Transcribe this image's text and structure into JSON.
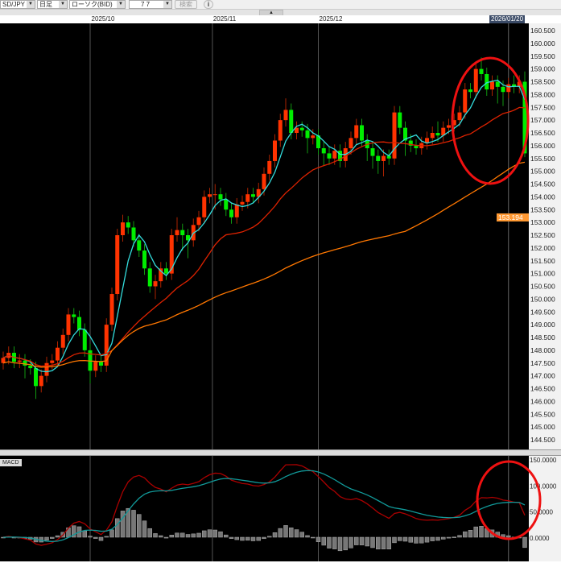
{
  "toolbar": {
    "symbol": "SD/JPY",
    "timeframe": "日足",
    "chart_type": "ローソク(BID)",
    "count": "7 7",
    "search_label": "検索",
    "info_icon": "info-icon"
  },
  "panel_label": "MACD",
  "cursor_date": "2026/01/20",
  "current_price_label": "153.194",
  "colors": {
    "up": "#ff3300",
    "down": "#00ee00",
    "ma_short": "#33dddd",
    "ma_mid": "#dd2200",
    "ma_long": "#ff7700",
    "macd": "#aa0000",
    "signal": "#119999",
    "histogram": "#777777",
    "annotation": "#ee1111",
    "price_tag": "#ff9933"
  },
  "chart_data": [
    {
      "type": "candlestick",
      "title": "",
      "x_ticks": [
        {
          "label": "2025/10",
          "index": 16
        },
        {
          "label": "2025/11",
          "index": 38.5
        },
        {
          "label": "2025/12",
          "index": 58
        }
      ],
      "cursor_index": 93,
      "y_ticks": [
        "160.500",
        "160.000",
        "159.500",
        "159.000",
        "158.500",
        "158.000",
        "157.500",
        "157.000",
        "156.500",
        "156.000",
        "155.500",
        "155.000",
        "154.500",
        "154.000",
        "153.500",
        "153.000",
        "152.500",
        "152.000",
        "151.500",
        "151.000",
        "150.500",
        "150.000",
        "149.500",
        "149.000",
        "148.500",
        "148.000",
        "147.500",
        "147.000",
        "146.500",
        "146.000",
        "145.500",
        "145.000",
        "144.500"
      ],
      "ylim": [
        144.0,
        161.4
      ],
      "overlays": [
        "ma_short",
        "ma_mid",
        "ma_long"
      ],
      "ohlc": [
        [
          147.5,
          147.95,
          147.25,
          147.7
        ],
        [
          147.7,
          148.15,
          147.45,
          147.9
        ],
        [
          147.9,
          148.15,
          147.3,
          147.55
        ],
        [
          147.55,
          147.85,
          147.3,
          147.6
        ],
        [
          147.6,
          147.85,
          146.9,
          147.4
        ],
        [
          147.4,
          147.65,
          147.05,
          147.3
        ],
        [
          147.3,
          147.55,
          146.1,
          146.6
        ],
        [
          146.6,
          147.25,
          146.35,
          147.0
        ],
        [
          147.0,
          147.75,
          146.75,
          147.5
        ],
        [
          147.5,
          147.85,
          147.25,
          147.6
        ],
        [
          147.6,
          148.35,
          147.35,
          148.1
        ],
        [
          148.1,
          148.85,
          147.85,
          148.6
        ],
        [
          148.6,
          149.65,
          148.35,
          149.4
        ],
        [
          149.4,
          149.65,
          149.05,
          149.3
        ],
        [
          149.3,
          149.55,
          148.55,
          148.8
        ],
        [
          148.8,
          149.05,
          147.75,
          148.0
        ],
        [
          148.0,
          148.25,
          146.7,
          147.2
        ],
        [
          147.2,
          147.8,
          146.95,
          147.55
        ],
        [
          147.55,
          147.8,
          147.15,
          147.4
        ],
        [
          147.4,
          149.25,
          147.15,
          149.0
        ],
        [
          149.0,
          150.45,
          148.75,
          150.2
        ],
        [
          150.2,
          152.75,
          149.95,
          152.5
        ],
        [
          152.5,
          153.3,
          152.25,
          153.0
        ],
        [
          153.0,
          153.25,
          152.55,
          152.8
        ],
        [
          152.8,
          153.05,
          152.05,
          152.3
        ],
        [
          152.3,
          152.55,
          151.65,
          151.9
        ],
        [
          151.9,
          152.15,
          150.95,
          151.2
        ],
        [
          151.2,
          151.45,
          150.25,
          150.5
        ],
        [
          150.5,
          150.95,
          150.0,
          150.7
        ],
        [
          150.7,
          151.45,
          150.45,
          151.2
        ],
        [
          151.2,
          151.45,
          150.75,
          151.0
        ],
        [
          151.0,
          152.75,
          150.75,
          152.5
        ],
        [
          152.5,
          153.2,
          152.25,
          152.7
        ],
        [
          152.7,
          152.95,
          151.9,
          152.5
        ],
        [
          152.5,
          152.75,
          151.6,
          152.3
        ],
        [
          152.3,
          153.15,
          152.05,
          152.9
        ],
        [
          152.9,
          153.45,
          152.65,
          153.2
        ],
        [
          153.2,
          154.25,
          152.95,
          154.0
        ],
        [
          154.0,
          154.35,
          153.75,
          154.1
        ],
        [
          154.1,
          154.5,
          153.5,
          154.1
        ],
        [
          154.1,
          154.35,
          153.65,
          153.9
        ],
        [
          153.9,
          154.15,
          153.25,
          153.5
        ],
        [
          153.5,
          153.75,
          152.95,
          153.2
        ],
        [
          153.2,
          153.95,
          152.95,
          153.7
        ],
        [
          153.7,
          154.05,
          153.45,
          153.8
        ],
        [
          153.8,
          154.35,
          153.55,
          154.1
        ],
        [
          154.1,
          154.35,
          153.75,
          154.0
        ],
        [
          154.0,
          154.55,
          153.75,
          154.3
        ],
        [
          154.3,
          155.15,
          154.05,
          154.9
        ],
        [
          154.9,
          155.65,
          154.65,
          155.4
        ],
        [
          155.4,
          156.45,
          155.15,
          156.2
        ],
        [
          156.2,
          157.25,
          155.95,
          157.0
        ],
        [
          157.0,
          157.85,
          156.75,
          157.4
        ],
        [
          157.4,
          157.65,
          156.25,
          156.5
        ],
        [
          156.5,
          156.95,
          156.25,
          156.7
        ],
        [
          156.7,
          156.95,
          156.35,
          156.6
        ],
        [
          156.6,
          156.85,
          155.7,
          156.3
        ],
        [
          156.3,
          156.65,
          156.05,
          156.4
        ],
        [
          156.4,
          156.65,
          155.65,
          155.9
        ],
        [
          155.9,
          156.15,
          155.2,
          155.7
        ],
        [
          155.7,
          155.95,
          155.25,
          155.5
        ],
        [
          155.5,
          156.05,
          155.25,
          155.8
        ],
        [
          155.8,
          156.05,
          155.15,
          155.4
        ],
        [
          155.4,
          156.15,
          155.15,
          155.9
        ],
        [
          155.9,
          156.55,
          155.65,
          156.3
        ],
        [
          156.3,
          157.05,
          156.05,
          156.8
        ],
        [
          156.8,
          157.05,
          155.95,
          156.2
        ],
        [
          156.2,
          156.45,
          155.4,
          155.9
        ],
        [
          155.9,
          156.15,
          155.1,
          155.6
        ],
        [
          155.6,
          155.85,
          154.9,
          155.4
        ],
        [
          155.4,
          155.85,
          154.8,
          155.6
        ],
        [
          155.6,
          155.85,
          155.25,
          155.5
        ],
        [
          155.5,
          157.55,
          155.25,
          157.3
        ],
        [
          157.3,
          157.55,
          156.45,
          156.7
        ],
        [
          156.7,
          156.95,
          155.6,
          156.2
        ],
        [
          156.2,
          156.45,
          155.75,
          156.0
        ],
        [
          156.0,
          156.25,
          155.65,
          155.9
        ],
        [
          155.9,
          156.35,
          155.65,
          156.1
        ],
        [
          156.1,
          156.55,
          155.85,
          156.3
        ],
        [
          156.3,
          156.75,
          156.05,
          156.5
        ],
        [
          156.5,
          156.95,
          156.15,
          156.4
        ],
        [
          156.4,
          156.95,
          156.15,
          156.7
        ],
        [
          156.7,
          157.05,
          156.45,
          156.8
        ],
        [
          156.8,
          157.25,
          156.55,
          157.0
        ],
        [
          157.0,
          157.55,
          156.75,
          157.3
        ],
        [
          157.3,
          158.45,
          157.05,
          158.2
        ],
        [
          158.2,
          158.45,
          157.85,
          158.1
        ],
        [
          158.1,
          159.25,
          157.85,
          159.0
        ],
        [
          159.0,
          159.45,
          158.55,
          158.8
        ],
        [
          158.8,
          159.05,
          157.95,
          158.2
        ],
        [
          158.2,
          158.75,
          157.95,
          158.5
        ],
        [
          158.5,
          158.75,
          157.65,
          158.3
        ],
        [
          158.3,
          158.55,
          157.55,
          158.1
        ],
        [
          158.1,
          158.65,
          157.85,
          158.4
        ],
        [
          158.4,
          158.75,
          158.05,
          158.3
        ],
        [
          158.3,
          158.75,
          158.05,
          158.5
        ],
        [
          158.5,
          158.9,
          155.55,
          155.7
        ]
      ]
    },
    {
      "type": "macd",
      "title": "MACD",
      "y_ticks": [
        "150.0000",
        "100.0000",
        "50.0000",
        "0.0000"
      ],
      "ylim": [
        -40,
        155
      ],
      "series": [
        "macd",
        "signal",
        "histogram"
      ]
    }
  ]
}
